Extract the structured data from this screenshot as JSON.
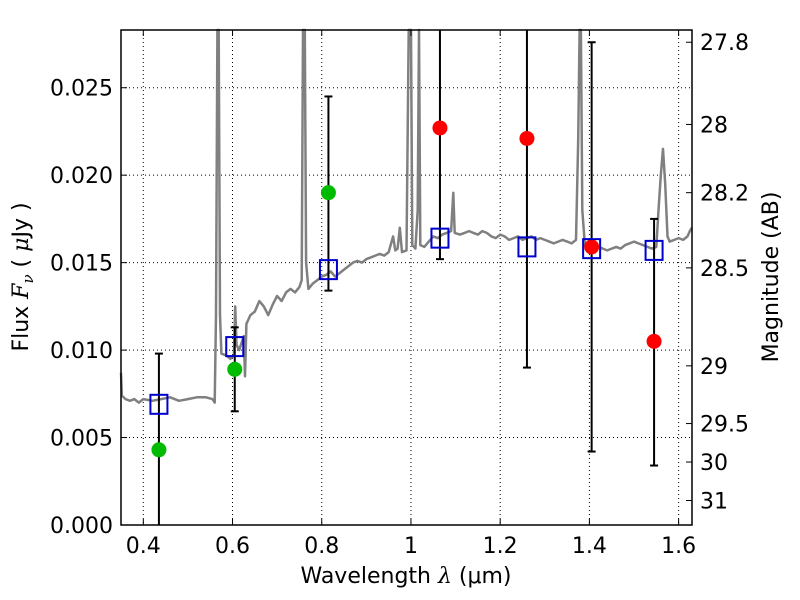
{
  "chart_data": {
    "type": "scatter",
    "xlabel": "Wavelength  λ (μm)",
    "xlabel_parts": {
      "prefix": "Wavelength  ",
      "symbol": "λ",
      "unit": " (μm)"
    },
    "ylabel": "Flux  Fν  ( μJy )",
    "ylabel_parts": {
      "prefix": "Flux  ",
      "symbol": "F",
      "subscript": "ν",
      "unit_open": "  ( ",
      "unit_mu": "μ",
      "unit_rest": "Jy )"
    },
    "y2label": "Magnitude (AB)",
    "xlim": [
      0.35,
      1.63
    ],
    "ylim": [
      0.0,
      0.0283
    ],
    "grid": true,
    "xticks": [
      {
        "value": 0.4,
        "label": "0.4"
      },
      {
        "value": 0.6,
        "label": "0.6"
      },
      {
        "value": 0.8,
        "label": "0.8"
      },
      {
        "value": 1.0,
        "label": "1"
      },
      {
        "value": 1.2,
        "label": "1.2"
      },
      {
        "value": 1.4,
        "label": "1.4"
      },
      {
        "value": 1.6,
        "label": "1.6"
      }
    ],
    "yticks": [
      {
        "value": 0.0,
        "label": "0.000"
      },
      {
        "value": 0.005,
        "label": "0.005"
      },
      {
        "value": 0.01,
        "label": "0.010"
      },
      {
        "value": 0.015,
        "label": "0.015"
      },
      {
        "value": 0.02,
        "label": "0.020"
      },
      {
        "value": 0.025,
        "label": "0.025"
      }
    ],
    "y2ticks": [
      {
        "flux": 0.0276,
        "label": "27.8"
      },
      {
        "flux": 0.0229,
        "label": "28"
      },
      {
        "flux": 0.019,
        "label": "28.2"
      },
      {
        "flux": 0.0147,
        "label": "28.5"
      },
      {
        "flux": 0.0091,
        "label": "29"
      },
      {
        "flux": 0.0058,
        "label": "29.5"
      },
      {
        "flux": 0.0036,
        "label": "30"
      },
      {
        "flux": 0.0014,
        "label": "31"
      }
    ],
    "spectrum": {
      "color": "#808080",
      "points": [
        [
          0.35,
          0.0087
        ],
        [
          0.352,
          0.0074
        ],
        [
          0.36,
          0.0072
        ],
        [
          0.37,
          0.0071
        ],
        [
          0.38,
          0.0072
        ],
        [
          0.39,
          0.007
        ],
        [
          0.4,
          0.0072
        ],
        [
          0.42,
          0.0071
        ],
        [
          0.44,
          0.0072
        ],
        [
          0.46,
          0.0073
        ],
        [
          0.48,
          0.0071
        ],
        [
          0.5,
          0.0072
        ],
        [
          0.52,
          0.0073
        ],
        [
          0.54,
          0.0073
        ],
        [
          0.555,
          0.0072
        ],
        [
          0.56,
          0.007
        ],
        [
          0.563,
          0.012
        ],
        [
          0.566,
          0.0283
        ],
        [
          0.569,
          0.0283
        ],
        [
          0.572,
          0.012
        ],
        [
          0.575,
          0.0098
        ],
        [
          0.585,
          0.0097
        ],
        [
          0.595,
          0.0095
        ],
        [
          0.603,
          0.0097
        ],
        [
          0.606,
          0.0125
        ],
        [
          0.609,
          0.0103
        ],
        [
          0.615,
          0.01
        ],
        [
          0.625,
          0.0108
        ],
        [
          0.628,
          0.0085
        ],
        [
          0.631,
          0.0115
        ],
        [
          0.64,
          0.012
        ],
        [
          0.65,
          0.0122
        ],
        [
          0.66,
          0.0128
        ],
        [
          0.67,
          0.0125
        ],
        [
          0.68,
          0.012
        ],
        [
          0.69,
          0.0126
        ],
        [
          0.7,
          0.0131
        ],
        [
          0.71,
          0.0128
        ],
        [
          0.72,
          0.0133
        ],
        [
          0.73,
          0.0135
        ],
        [
          0.74,
          0.0133
        ],
        [
          0.75,
          0.0136
        ],
        [
          0.755,
          0.014
        ],
        [
          0.758,
          0.0283
        ],
        [
          0.76,
          0.0283
        ],
        [
          0.762,
          0.0283
        ],
        [
          0.765,
          0.015
        ],
        [
          0.77,
          0.0135
        ],
        [
          0.78,
          0.0138
        ],
        [
          0.79,
          0.014
        ],
        [
          0.8,
          0.0142
        ],
        [
          0.81,
          0.0143
        ],
        [
          0.82,
          0.0145
        ],
        [
          0.83,
          0.0142
        ],
        [
          0.84,
          0.0144
        ],
        [
          0.85,
          0.0146
        ],
        [
          0.86,
          0.0148
        ],
        [
          0.87,
          0.015
        ],
        [
          0.88,
          0.0151
        ],
        [
          0.89,
          0.015
        ],
        [
          0.9,
          0.0152
        ],
        [
          0.91,
          0.0153
        ],
        [
          0.92,
          0.0154
        ],
        [
          0.93,
          0.0155
        ],
        [
          0.94,
          0.0154
        ],
        [
          0.95,
          0.0156
        ],
        [
          0.96,
          0.0165
        ],
        [
          0.965,
          0.0157
        ],
        [
          0.97,
          0.0158
        ],
        [
          0.975,
          0.017
        ],
        [
          0.98,
          0.0156
        ],
        [
          0.99,
          0.0157
        ],
        [
          0.995,
          0.0283
        ],
        [
          1.0,
          0.0283
        ],
        [
          1.003,
          0.016
        ],
        [
          1.01,
          0.0158
        ],
        [
          1.015,
          0.018
        ],
        [
          1.018,
          0.0283
        ],
        [
          1.021,
          0.016
        ],
        [
          1.03,
          0.0159
        ],
        [
          1.04,
          0.0162
        ],
        [
          1.05,
          0.0165
        ],
        [
          1.06,
          0.0164
        ],
        [
          1.07,
          0.0166
        ],
        [
          1.08,
          0.0167
        ],
        [
          1.09,
          0.0168
        ],
        [
          1.095,
          0.019
        ],
        [
          1.098,
          0.0167
        ],
        [
          1.11,
          0.0166
        ],
        [
          1.12,
          0.0167
        ],
        [
          1.13,
          0.0168
        ],
        [
          1.14,
          0.0167
        ],
        [
          1.15,
          0.0166
        ],
        [
          1.16,
          0.0168
        ],
        [
          1.17,
          0.0167
        ],
        [
          1.18,
          0.0165
        ],
        [
          1.19,
          0.0164
        ],
        [
          1.2,
          0.0166
        ],
        [
          1.21,
          0.0165
        ],
        [
          1.22,
          0.0163
        ],
        [
          1.23,
          0.0164
        ],
        [
          1.24,
          0.0165
        ],
        [
          1.25,
          0.0163
        ],
        [
          1.26,
          0.0164
        ],
        [
          1.27,
          0.0165
        ],
        [
          1.28,
          0.0163
        ],
        [
          1.29,
          0.0164
        ],
        [
          1.3,
          0.0163
        ],
        [
          1.31,
          0.0162
        ],
        [
          1.32,
          0.0161
        ],
        [
          1.33,
          0.0162
        ],
        [
          1.34,
          0.0163
        ],
        [
          1.35,
          0.0162
        ],
        [
          1.36,
          0.0161
        ],
        [
          1.37,
          0.0163
        ],
        [
          1.375,
          0.022
        ],
        [
          1.378,
          0.0283
        ],
        [
          1.381,
          0.0283
        ],
        [
          1.384,
          0.018
        ],
        [
          1.39,
          0.016
        ],
        [
          1.4,
          0.0159
        ],
        [
          1.41,
          0.0158
        ],
        [
          1.42,
          0.0159
        ],
        [
          1.43,
          0.0158
        ],
        [
          1.44,
          0.0157
        ],
        [
          1.45,
          0.0158
        ],
        [
          1.46,
          0.0159
        ],
        [
          1.47,
          0.0158
        ],
        [
          1.48,
          0.016
        ],
        [
          1.49,
          0.0161
        ],
        [
          1.5,
          0.0162
        ],
        [
          1.51,
          0.0161
        ],
        [
          1.52,
          0.016
        ],
        [
          1.53,
          0.0159
        ],
        [
          1.54,
          0.0158
        ],
        [
          1.55,
          0.0159
        ],
        [
          1.555,
          0.018
        ],
        [
          1.56,
          0.02
        ],
        [
          1.565,
          0.0215
        ],
        [
          1.57,
          0.0195
        ],
        [
          1.575,
          0.0165
        ],
        [
          1.58,
          0.0162
        ],
        [
          1.59,
          0.0163
        ],
        [
          1.6,
          0.0164
        ],
        [
          1.61,
          0.0163
        ],
        [
          1.62,
          0.0165
        ],
        [
          1.625,
          0.0168
        ],
        [
          1.63,
          0.017
        ]
      ]
    },
    "series": [
      {
        "marker": "circle",
        "color": "#00bb00",
        "points": [
          [
            0.435,
            0.0043
          ],
          [
            0.605,
            0.0089
          ],
          [
            0.815,
            0.019
          ]
        ]
      },
      {
        "marker": "circle",
        "color": "#ff0000",
        "points": [
          [
            1.065,
            0.0227
          ],
          [
            1.26,
            0.0221
          ],
          [
            1.405,
            0.0159
          ],
          [
            1.545,
            0.0105
          ]
        ]
      },
      {
        "marker": "square-open",
        "color": "#0000cc",
        "points": [
          [
            0.435,
            0.0069
          ],
          [
            0.605,
            0.0102
          ],
          [
            0.815,
            0.0146
          ],
          [
            1.065,
            0.0164
          ],
          [
            1.26,
            0.0159
          ],
          [
            1.405,
            0.0158
          ],
          [
            1.545,
            0.0157
          ]
        ]
      }
    ],
    "errorbars": [
      {
        "x": 0.435,
        "low": 0.0,
        "high": 0.0098,
        "cap_low": false,
        "cap_high": true
      },
      {
        "x": 0.605,
        "low": 0.0065,
        "high": 0.0113,
        "cap_low": true,
        "cap_high": true
      },
      {
        "x": 0.815,
        "low": 0.0134,
        "high": 0.0245,
        "cap_low": true,
        "cap_high": true
      },
      {
        "x": 1.065,
        "low": 0.0152,
        "high": 0.0283,
        "cap_low": true,
        "cap_high": false
      },
      {
        "x": 1.26,
        "low": 0.009,
        "high": 0.0283,
        "cap_low": true,
        "cap_high": false
      },
      {
        "x": 1.405,
        "low": 0.0042,
        "high": 0.0276,
        "cap_low": true,
        "cap_high": true
      },
      {
        "x": 1.545,
        "low": 0.0034,
        "high": 0.0175,
        "cap_low": true,
        "cap_high": true
      }
    ]
  }
}
